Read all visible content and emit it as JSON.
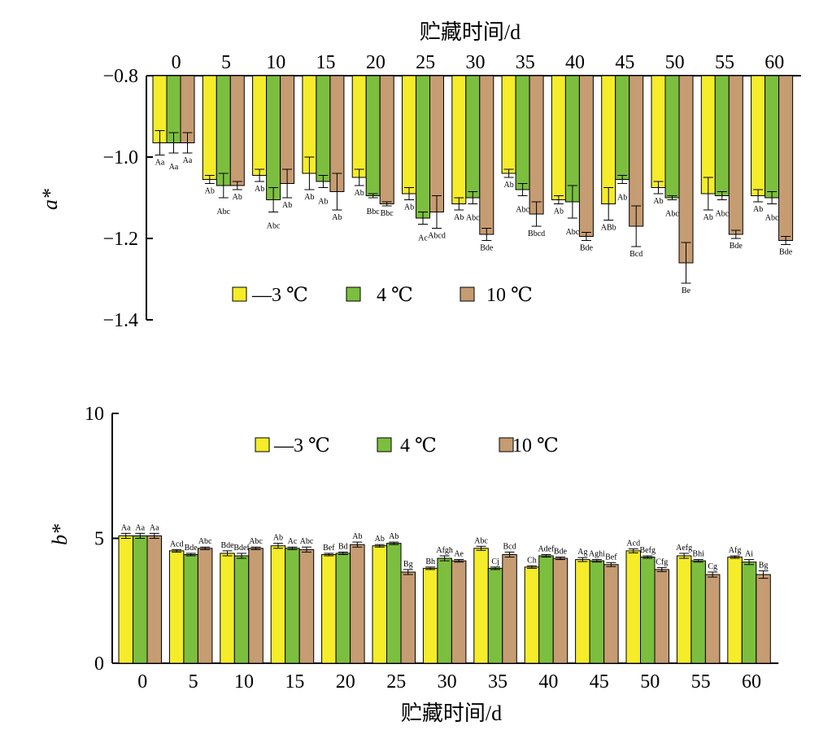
{
  "colors": {
    "s1": "#f5ec2a",
    "s2": "#7cbf3f",
    "s3": "#c69c72",
    "axis": "#000000"
  },
  "chart_data": [
    {
      "type": "bar",
      "ylabel": "a*",
      "xlabel": "贮藏时间/d",
      "ylim": [
        -1.4,
        -0.8
      ],
      "yticks": [
        -0.8,
        -1.0,
        -1.2,
        -1.4
      ],
      "ytick_labels": [
        "−0.8",
        "−1.0",
        "−1.2",
        "−1.4"
      ],
      "categories": [
        "0",
        "5",
        "10",
        "15",
        "20",
        "25",
        "30",
        "35",
        "40",
        "45",
        "50",
        "55",
        "60"
      ],
      "x_axis_position": "top",
      "legend": {
        "position": "bottom-left",
        "labels": [
          "—3 ℃",
          "4 ℃",
          "10 ℃"
        ]
      },
      "series": [
        {
          "name": "—3 ℃",
          "values": [
            -0.965,
            -1.055,
            -1.045,
            -1.04,
            -1.05,
            -1.09,
            -1.115,
            -1.04,
            -1.105,
            -1.115,
            -1.075,
            -1.09,
            -1.095
          ],
          "errors": [
            0.03,
            0.01,
            0.015,
            0.04,
            0.02,
            0.015,
            0.015,
            0.01,
            0.01,
            0.04,
            0.015,
            0.04,
            0.015
          ],
          "labels": [
            "Aa",
            "Ab",
            "Ab",
            "Ab",
            "Ab",
            "Ab",
            "Ab",
            "Ab",
            "Ab",
            "ABb",
            "Ab",
            "Ab",
            "Ab"
          ]
        },
        {
          "name": "4 ℃",
          "values": [
            -0.965,
            -1.07,
            -1.105,
            -1.06,
            -1.095,
            -1.15,
            -1.1,
            -1.08,
            -1.11,
            -1.055,
            -1.1,
            -1.095,
            -1.1
          ],
          "errors": [
            0.025,
            0.03,
            0.03,
            0.015,
            0.005,
            0.015,
            0.015,
            0.015,
            0.04,
            0.01,
            0.005,
            0.01,
            0.015
          ],
          "labels": [
            "Aa",
            "Abc",
            "Abc",
            "Ab",
            "Bbc",
            "Ac",
            "Abc",
            "Abc",
            "Abc",
            "Ab",
            "Abc",
            "Abc",
            "Abc"
          ]
        },
        {
          "name": "10 ℃",
          "values": [
            -0.965,
            -1.07,
            -1.065,
            -1.085,
            -1.115,
            -1.135,
            -1.19,
            -1.14,
            -1.195,
            -1.17,
            -1.26,
            -1.19,
            -1.205
          ],
          "errors": [
            0.025,
            0.01,
            0.035,
            0.045,
            0.005,
            0.04,
            0.015,
            0.03,
            0.01,
            0.05,
            0.05,
            0.01,
            0.01
          ],
          "labels": [
            "Aa",
            "Ab",
            "Ab",
            "Ab",
            "Bbc",
            "Abcd",
            "Bde",
            "Bbcd",
            "Bde",
            "Bcd",
            "Be",
            "Bde",
            "Bde"
          ]
        }
      ]
    },
    {
      "type": "bar",
      "ylabel": "b*",
      "xlabel": "贮藏时间/d",
      "ylim": [
        0,
        10
      ],
      "yticks": [
        0,
        5,
        10
      ],
      "ytick_labels": [
        "0",
        "5",
        "10"
      ],
      "categories": [
        "0",
        "5",
        "10",
        "15",
        "20",
        "25",
        "30",
        "35",
        "40",
        "45",
        "50",
        "55",
        "60"
      ],
      "x_axis_position": "bottom",
      "legend": {
        "position": "top",
        "labels": [
          "—3 ℃",
          "4 ℃",
          "10 ℃"
        ]
      },
      "series": [
        {
          "name": "—3 ℃",
          "values": [
            5.1,
            4.5,
            4.4,
            4.7,
            4.35,
            4.7,
            3.8,
            4.6,
            3.85,
            4.15,
            4.5,
            4.3,
            4.25
          ],
          "errors": [
            0.1,
            0.05,
            0.1,
            0.1,
            0.05,
            0.05,
            0.05,
            0.08,
            0.05,
            0.08,
            0.08,
            0.1,
            0.05
          ],
          "labels": [
            "Aa",
            "Acd",
            "Bde",
            "Ab",
            "Bef",
            "Ab",
            "Bh",
            "Abc",
            "Ch",
            "Ag",
            "Acd",
            "Aefg",
            "Afg"
          ]
        },
        {
          "name": "4 ℃",
          "values": [
            5.1,
            4.35,
            4.3,
            4.6,
            4.4,
            4.8,
            4.2,
            3.8,
            4.3,
            4.1,
            4.25,
            4.1,
            4.05
          ],
          "errors": [
            0.1,
            0.05,
            0.1,
            0.05,
            0.05,
            0.05,
            0.1,
            0.05,
            0.05,
            0.05,
            0.05,
            0.05,
            0.1
          ],
          "labels": [
            "Aa",
            "Bde",
            "Bdef",
            "Ac",
            "Bd",
            "Ab",
            "Afgh",
            "Cj",
            "Adef",
            "Aghi",
            "Befg",
            "Bhi",
            "Ai"
          ]
        },
        {
          "name": "10 ℃",
          "values": [
            5.1,
            4.6,
            4.6,
            4.55,
            4.75,
            3.65,
            4.1,
            4.35,
            4.2,
            3.95,
            3.75,
            3.55,
            3.55
          ],
          "errors": [
            0.1,
            0.05,
            0.05,
            0.1,
            0.1,
            0.1,
            0.05,
            0.1,
            0.05,
            0.08,
            0.08,
            0.1,
            0.15
          ],
          "labels": [
            "Aa",
            "Abc",
            "Abc",
            "Abc",
            "Ab",
            "Bg",
            "Ae",
            "Bcd",
            "Bde",
            "Bef",
            "Cfg",
            "Cg",
            "Bg"
          ]
        }
      ]
    }
  ]
}
